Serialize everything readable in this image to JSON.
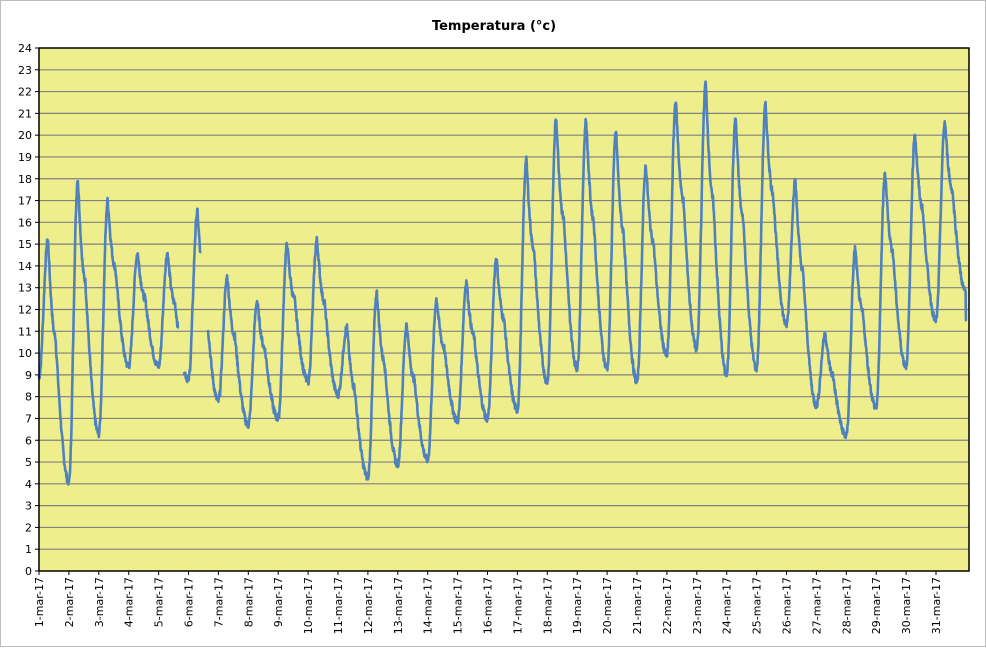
{
  "chart_data": {
    "type": "line",
    "title": "Temperatura (°c)",
    "xlabel": "",
    "ylabel": "",
    "ylim": [
      0,
      24
    ],
    "yticks": [
      "0",
      "1",
      "2",
      "3",
      "4",
      "5",
      "6",
      "7",
      "8",
      "9",
      "10",
      "11",
      "12",
      "13",
      "14",
      "15",
      "16",
      "17",
      "18",
      "19",
      "20",
      "21",
      "22",
      "23",
      "24"
    ],
    "grid": true,
    "legend": "none",
    "colors": {
      "plot_area": "#eeee8c",
      "line": "#4f81bd",
      "grid": "#808080",
      "border": "#000000"
    },
    "x_categories": [
      "1-mar-17",
      "2-mar-17",
      "3-mar-17",
      "4-mar-17",
      "5-mar-17",
      "6-mar-17",
      "7-mar-17",
      "8-mar-17",
      "9-mar-17",
      "10-mar-17",
      "11-mar-17",
      "12-mar-17",
      "13-mar-17",
      "14-mar-17",
      "15-mar-17",
      "16-mar-17",
      "17-mar-17",
      "18-mar-17",
      "19-mar-17",
      "20-mar-17",
      "21-mar-17",
      "22-mar-17",
      "23-mar-17",
      "24-mar-17",
      "25-mar-17",
      "26-mar-17",
      "27-mar-17",
      "28-mar-17",
      "29-mar-17",
      "30-mar-17",
      "31-mar-17"
    ],
    "series": [
      {
        "daily_min": [
          8.9,
          4.1,
          6.3,
          9.4,
          9.4,
          8.8,
          7.8,
          6.7,
          7.0,
          8.7,
          8.1,
          4.3,
          4.9,
          5.1,
          6.9,
          7.0,
          7.4,
          8.7,
          9.3,
          9.3,
          8.7,
          9.9,
          10.2,
          9.0,
          9.3,
          11.3,
          7.6,
          6.2,
          7.5,
          9.4,
          11.5
        ],
        "daily_max": [
          15.2,
          18.0,
          17.0,
          14.6,
          14.6,
          16.5,
          13.5,
          12.4,
          15.0,
          15.2,
          11.2,
          12.8,
          11.3,
          12.5,
          13.3,
          14.4,
          18.9,
          20.8,
          20.7,
          20.2,
          18.6,
          21.6,
          22.4,
          20.8,
          21.4,
          17.9,
          10.9,
          14.8,
          18.3,
          20.1,
          20.6
        ],
        "gaps": [
          [
            4.65,
            4.85
          ],
          [
            5.4,
            5.65
          ]
        ],
        "last_value": 12.8
      }
    ]
  }
}
